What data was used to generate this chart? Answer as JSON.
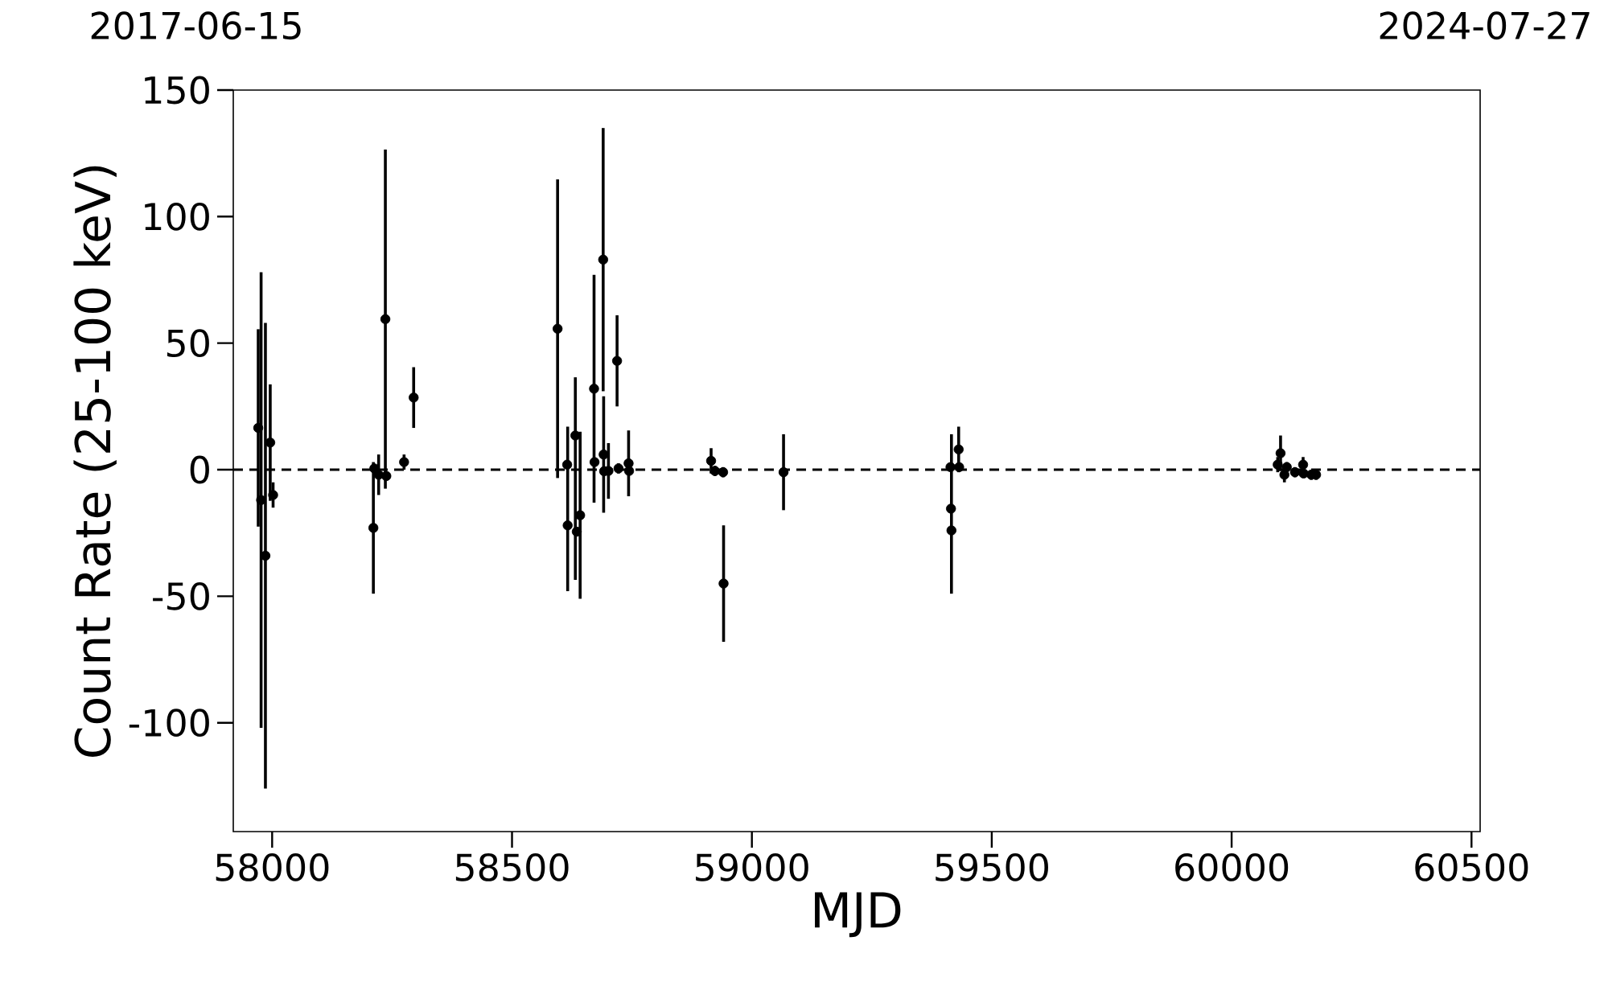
{
  "chart_data": {
    "type": "scatter",
    "xlabel": "MJD",
    "ylabel": "Count Rate (25-100 keV)",
    "x": [
      57971,
      57977,
      57986,
      57996,
      58002,
      58211,
      58213,
      58222,
      58236,
      58238,
      58275,
      58295,
      58595,
      58615,
      58616,
      58632,
      58635,
      58642,
      58671,
      58672,
      58690,
      58691,
      58692,
      58701,
      58719,
      58722,
      58743,
      58744,
      58915,
      58923,
      58940,
      58941,
      59066,
      59414,
      59415,
      59416,
      59431,
      59432,
      60096,
      60102,
      60110,
      60115,
      60132,
      60149,
      60150,
      60166,
      60176
    ],
    "values": [
      16.5,
      -12,
      -34,
      10.7,
      -10,
      -23,
      0.5,
      -2,
      59.5,
      -2.5,
      3,
      28.5,
      55.7,
      2,
      -22,
      13.5,
      -24.5,
      -18,
      32,
      3,
      83,
      6,
      -0.6,
      -0.5,
      43,
      0.5,
      2.5,
      -0.5,
      3.5,
      -0.5,
      -1,
      -45,
      -1,
      1,
      -15.4,
      -24,
      8,
      1,
      2,
      6.5,
      -2,
      1,
      -1,
      2,
      -1.5,
      -2,
      -2
    ],
    "errors": [
      39,
      90,
      92,
      23,
      5,
      26,
      null,
      8,
      67,
      null,
      3,
      12,
      59,
      null,
      [
        -48,
        17
      ],
      [
        -43.5,
        36.5
      ],
      null,
      33,
      45,
      null,
      52,
      23,
      null,
      11,
      18,
      2,
      13,
      null,
      5,
      2,
      2,
      23,
      15,
      null,
      null,
      [
        -49,
        14
      ],
      9,
      null,
      3,
      7,
      3,
      2,
      2,
      3,
      null,
      2,
      2
    ],
    "color": "#000000",
    "marker": "circle",
    "xlim": [
      57919,
      60518
    ],
    "xticks": [
      58000,
      58500,
      59000,
      59500,
      60000,
      60500
    ],
    "ylim": [
      -143,
      150
    ],
    "yticks": [
      -100,
      -50,
      0,
      50,
      100,
      150
    ],
    "annotations": [
      "2017-06-15",
      "2024-07-27"
    ],
    "ref_lines": [
      {
        "axis": "y",
        "value": 0,
        "color": "#000000",
        "line_style": "dashed"
      }
    ],
    "grid": false
  }
}
